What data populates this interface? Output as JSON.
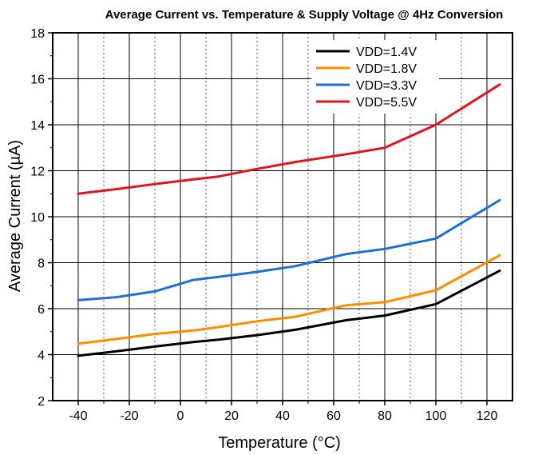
{
  "chart_data": {
    "type": "line",
    "title": "Average Current vs. Temperature & Supply Voltage @ 4Hz Conversion",
    "xlabel": "Temperature (°C)",
    "ylabel": "Average Current (µA)",
    "xlim": [
      -50,
      130
    ],
    "ylim": [
      2,
      18
    ],
    "xticks": [
      -40,
      -20,
      0,
      20,
      40,
      60,
      80,
      100,
      120
    ],
    "yticks": [
      2,
      4,
      6,
      8,
      10,
      12,
      14,
      16,
      18
    ],
    "x_minor_grid": [
      -30,
      -10,
      10,
      30,
      50,
      70,
      90,
      110
    ],
    "grid": true,
    "legend_position": "top-right",
    "series": [
      {
        "name": "VDD=1.4V",
        "color": "#000000",
        "x": [
          -40,
          -25,
          -10,
          5,
          15,
          30,
          45,
          65,
          80,
          100,
          125
        ],
        "y": [
          3.95,
          4.15,
          4.35,
          4.55,
          4.65,
          4.85,
          5.08,
          5.5,
          5.7,
          6.2,
          7.65
        ]
      },
      {
        "name": "VDD=1.8V",
        "color": "#ff8c00",
        "x": [
          -40,
          -25,
          -10,
          5,
          15,
          30,
          45,
          65,
          80,
          100,
          125
        ],
        "y": [
          4.48,
          4.68,
          4.9,
          5.05,
          5.2,
          5.45,
          5.65,
          6.15,
          6.28,
          6.8,
          8.32
        ]
      },
      {
        "name": "VDD=3.3V",
        "color": "#1f6fd6",
        "x": [
          -40,
          -25,
          -10,
          5,
          15,
          30,
          45,
          65,
          80,
          100,
          125
        ],
        "y": [
          6.37,
          6.5,
          6.75,
          7.25,
          7.38,
          7.6,
          7.85,
          8.38,
          8.6,
          9.05,
          10.72
        ]
      },
      {
        "name": "VDD=5.5V",
        "color": "#e3121b",
        "x": [
          -40,
          -25,
          -10,
          5,
          15,
          30,
          45,
          65,
          80,
          100,
          125
        ],
        "y": [
          11.0,
          11.2,
          11.42,
          11.62,
          11.75,
          12.08,
          12.38,
          12.72,
          13.0,
          14.0,
          15.75
        ]
      }
    ]
  }
}
